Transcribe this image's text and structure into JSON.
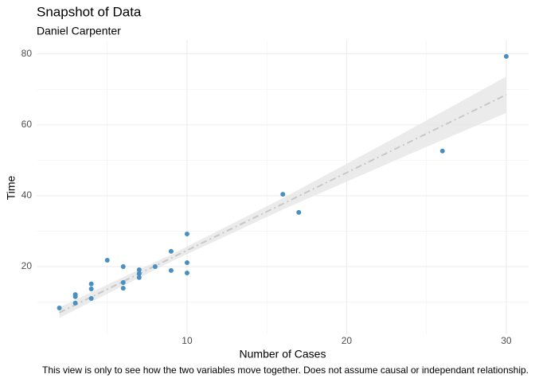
{
  "chart_data": {
    "type": "scatter",
    "title": "Snapshot of Data",
    "subtitle": "Daniel Carpenter",
    "x_label": "Number of Cases",
    "y_label": "Time",
    "caption": "This view is only to see how the two variables move together. Does not assume causal or independant relationship.",
    "x": [
      2,
      3,
      3,
      3,
      4,
      4,
      4,
      5,
      6,
      6,
      6,
      7,
      7,
      7,
      8,
      9,
      9,
      10,
      10,
      10,
      16,
      17,
      26,
      30
    ],
    "values": [
      8.3,
      12.1,
      11.5,
      9.7,
      15.1,
      13.7,
      11.0,
      21.8,
      20.0,
      15.5,
      13.9,
      19.1,
      18.0,
      16.9,
      20.0,
      24.3,
      18.9,
      29.2,
      21.1,
      18.2,
      40.4,
      35.3,
      52.6,
      79.3
    ],
    "color": "#4a8fc2",
    "fit": {
      "x": [
        2,
        9,
        16,
        23,
        30
      ],
      "values": [
        7,
        22.4,
        37.7,
        53.1,
        68.5
      ],
      "lower": [
        5.5,
        21.4,
        36.1,
        49.9,
        63.4
      ],
      "upper": [
        8.5,
        23.4,
        39.3,
        56.3,
        73.6
      ],
      "color": "#c8c8c8",
      "band_color": "#e6e6e6"
    },
    "xlim": [
      0.6,
      31.4
    ],
    "ylim": [
      0.9,
      84
    ],
    "xticks": [
      10,
      20,
      30
    ],
    "yticks": [
      20,
      40,
      60,
      80
    ],
    "xminor": [
      5,
      15,
      25
    ],
    "yminor": [
      10,
      30,
      50,
      70
    ],
    "grid": true
  }
}
